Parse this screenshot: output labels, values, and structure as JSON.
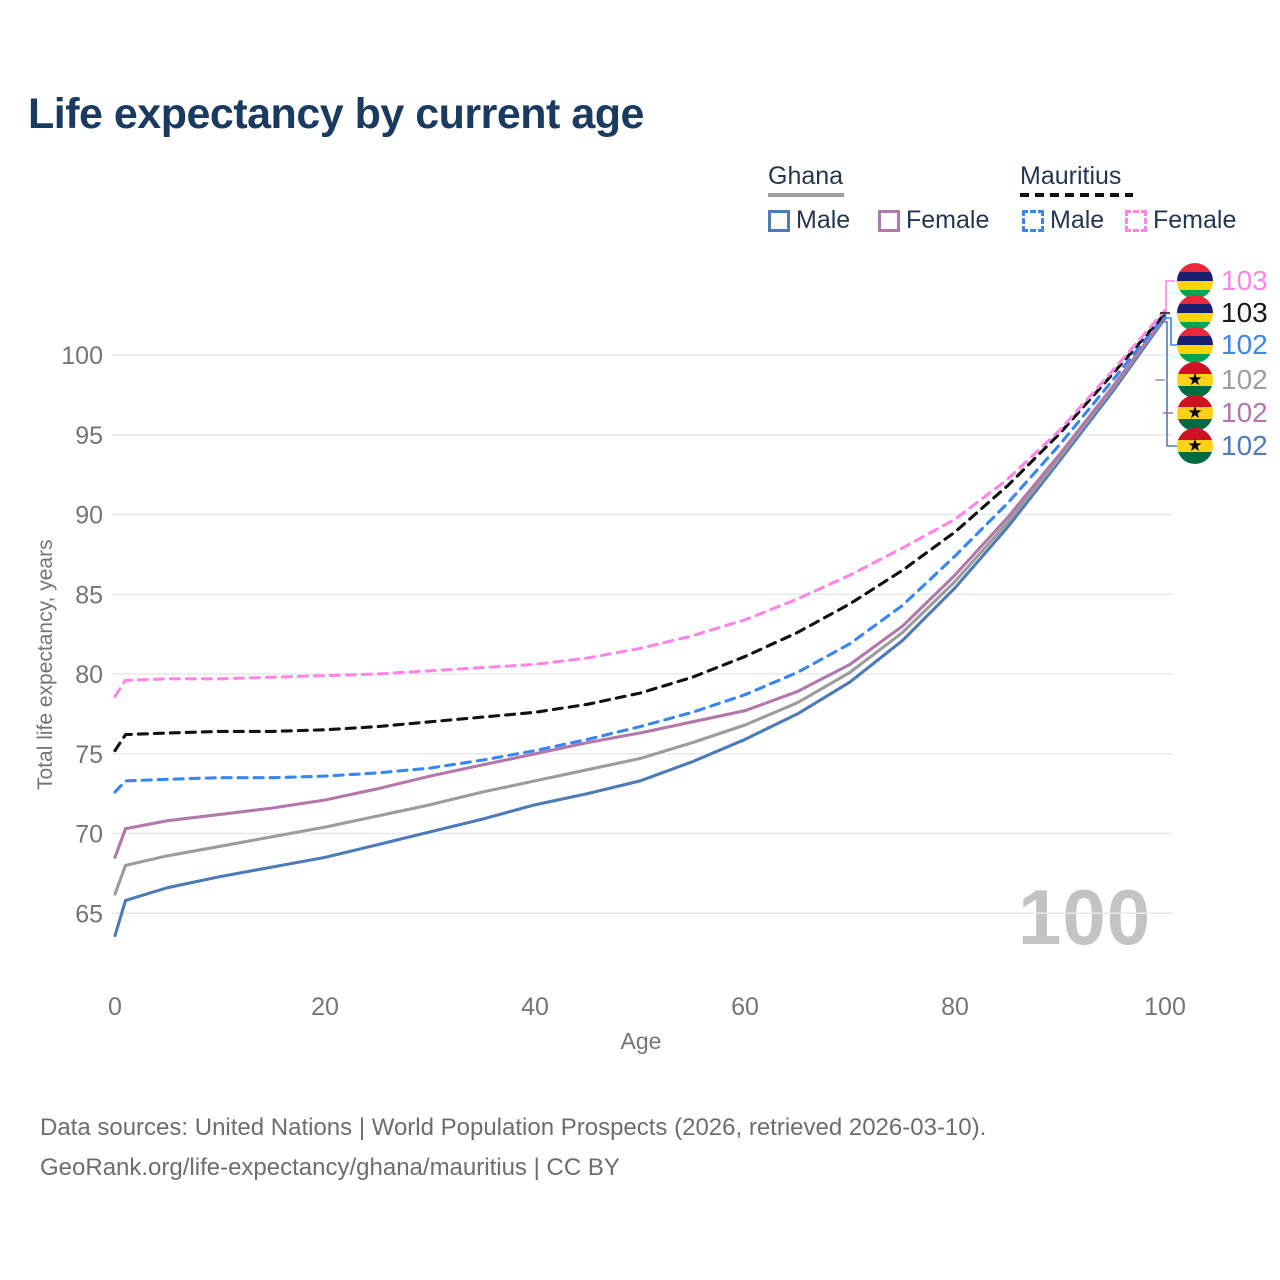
{
  "title": "Life expectancy by current age",
  "watermark": "100",
  "legend": {
    "groups": [
      {
        "label": "Ghana",
        "line_style": "solid",
        "items": [
          {
            "label": "Male",
            "color": "#4f7ab8"
          },
          {
            "label": "Female",
            "color": "#b178a9"
          }
        ]
      },
      {
        "label": "Mauritius",
        "line_style": "dashed",
        "items": [
          {
            "label": "Male",
            "color": "#3a86f0"
          },
          {
            "label": "Female",
            "color": "#ff87e3"
          }
        ]
      }
    ]
  },
  "chart_data": {
    "type": "line",
    "title": "Life expectancy by current age",
    "xlabel": "Age",
    "ylabel": "Total life expectancy, years",
    "xlim": [
      0,
      100
    ],
    "ylim": [
      63,
      104
    ],
    "x_ticks": [
      0,
      20,
      40,
      60,
      80,
      100
    ],
    "y_ticks": [
      65,
      70,
      75,
      80,
      85,
      90,
      95,
      100
    ],
    "grid": "horizontal",
    "legend_position": "top-right",
    "x": [
      0,
      1,
      5,
      10,
      15,
      20,
      25,
      30,
      35,
      40,
      45,
      50,
      55,
      60,
      65,
      70,
      75,
      80,
      85,
      90,
      95,
      100
    ],
    "series": [
      {
        "name": "Ghana Male",
        "country": "Ghana",
        "sex": "Male",
        "color": "#4f7ab8",
        "dash": "solid",
        "end_label": "102",
        "values": [
          63.6,
          65.8,
          66.6,
          67.3,
          67.9,
          68.5,
          69.3,
          70.1,
          70.9,
          71.8,
          72.5,
          73.3,
          74.5,
          75.9,
          77.5,
          79.5,
          82.1,
          85.4,
          89.2,
          93.4,
          97.7,
          102.3
        ]
      },
      {
        "name": "Ghana Both sexes",
        "country": "Ghana",
        "sex": "Both",
        "color": "#9c9c9c",
        "dash": "solid",
        "end_label": "102",
        "values": [
          66.2,
          68.0,
          68.6,
          69.2,
          69.8,
          70.4,
          71.1,
          71.8,
          72.6,
          73.3,
          74.0,
          74.7,
          75.7,
          76.8,
          78.2,
          80.1,
          82.6,
          85.8,
          89.5,
          93.6,
          97.9,
          102.4
        ]
      },
      {
        "name": "Ghana Female",
        "country": "Ghana",
        "sex": "Female",
        "color": "#b178a9",
        "dash": "solid",
        "end_label": "102",
        "values": [
          68.5,
          70.3,
          70.8,
          71.2,
          71.6,
          72.1,
          72.8,
          73.6,
          74.3,
          75.0,
          75.7,
          76.3,
          77.0,
          77.7,
          78.9,
          80.6,
          83.0,
          86.2,
          89.8,
          93.8,
          98.0,
          102.4
        ]
      },
      {
        "name": "Mauritius Male",
        "country": "Mauritius",
        "sex": "Male",
        "color": "#3a86f0",
        "dash": "dashed",
        "end_label": "102",
        "values": [
          72.6,
          73.3,
          73.4,
          73.5,
          73.5,
          73.6,
          73.8,
          74.1,
          74.6,
          75.2,
          75.9,
          76.7,
          77.6,
          78.7,
          80.1,
          81.9,
          84.3,
          87.4,
          90.7,
          94.4,
          98.4,
          102.5
        ]
      },
      {
        "name": "Mauritius Both sexes",
        "country": "Mauritius",
        "sex": "Both",
        "color": "#111111",
        "dash": "dashed",
        "end_label": "103",
        "values": [
          75.2,
          76.2,
          76.3,
          76.4,
          76.4,
          76.5,
          76.7,
          77.0,
          77.3,
          77.6,
          78.1,
          78.8,
          79.8,
          81.1,
          82.6,
          84.4,
          86.5,
          88.9,
          91.8,
          95.1,
          98.8,
          102.6
        ]
      },
      {
        "name": "Mauritius Female",
        "country": "Mauritius",
        "sex": "Female",
        "color": "#ff87e3",
        "dash": "dashed",
        "end_label": "103",
        "values": [
          78.6,
          79.6,
          79.7,
          79.7,
          79.8,
          79.9,
          80.0,
          80.2,
          80.4,
          80.6,
          81.0,
          81.6,
          82.4,
          83.4,
          84.7,
          86.2,
          87.9,
          89.7,
          92.2,
          95.3,
          99.0,
          102.8
        ]
      }
    ]
  },
  "end_labels": [
    {
      "flag": "mauritius",
      "value": "103",
      "color": "#ff87e3"
    },
    {
      "flag": "mauritius",
      "value": "103",
      "color": "#1a1a1a"
    },
    {
      "flag": "mauritius",
      "value": "102",
      "color": "#3a86f0"
    },
    {
      "flag": "ghana",
      "value": "102",
      "color": "#9e9e9e"
    },
    {
      "flag": "ghana",
      "value": "102",
      "color": "#b178a9"
    },
    {
      "flag": "ghana",
      "value": "102",
      "color": "#4f7ab8"
    }
  ],
  "footer": {
    "line1": "Data sources: United Nations | World Population Prospects (2026, retrieved 2026-03-10).",
    "line2": "GeoRank.org/life-expectancy/ghana/mauritius | CC BY"
  }
}
